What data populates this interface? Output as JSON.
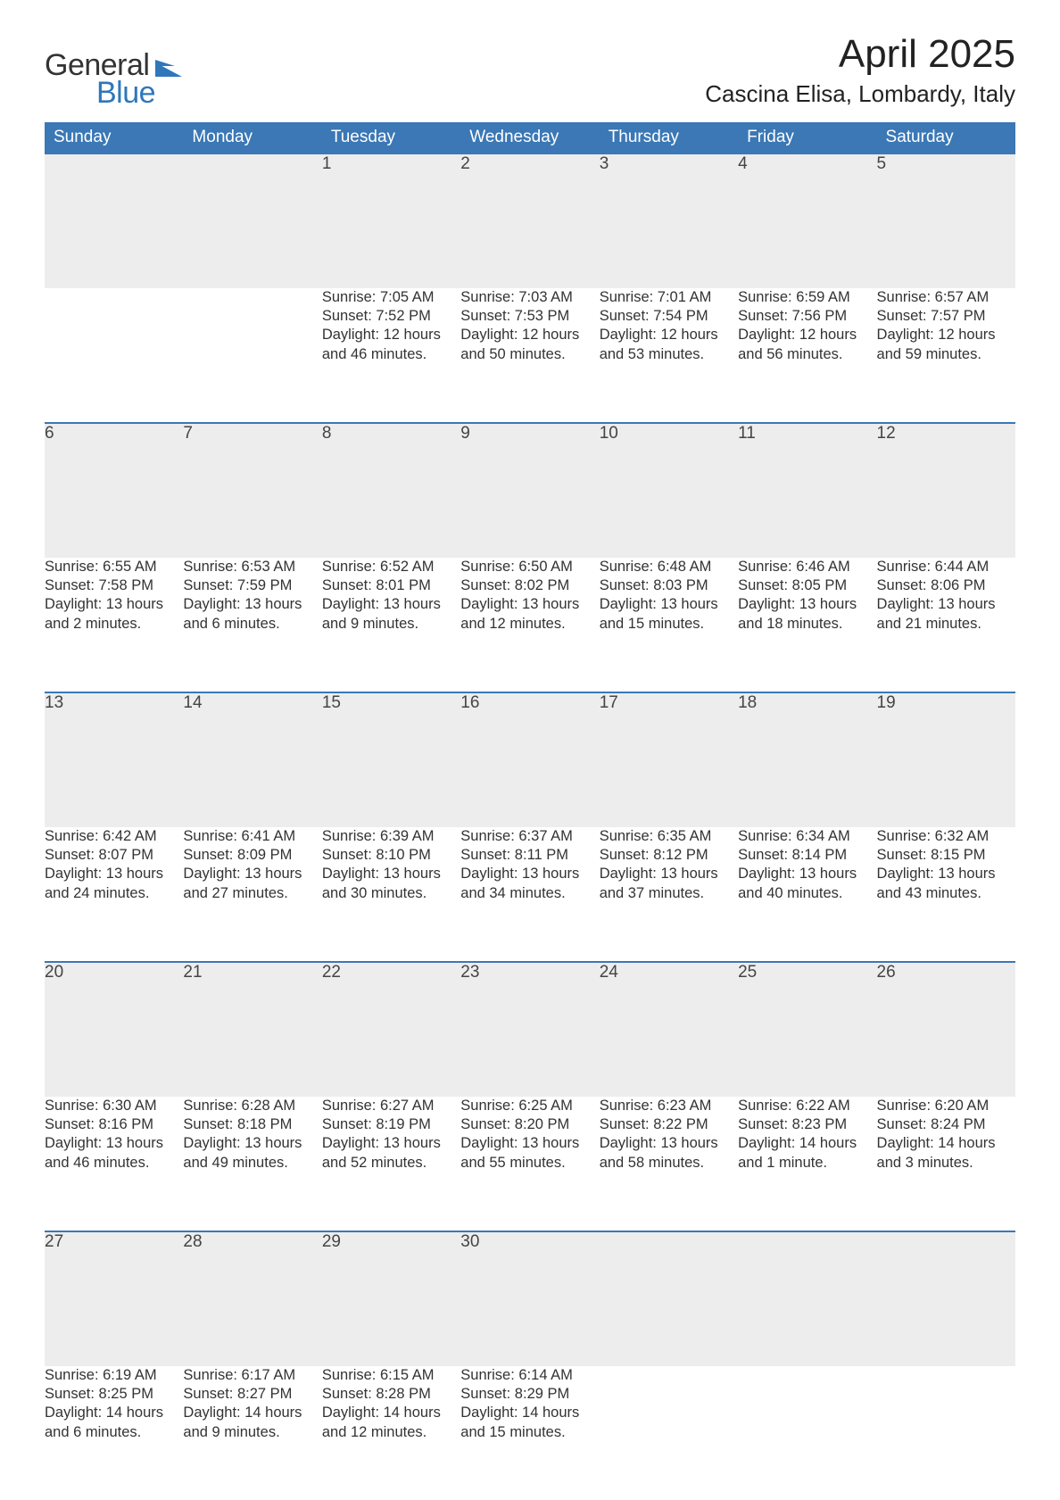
{
  "colors": {
    "accent": "#3b78b5",
    "row_header_bg": "#ededed",
    "background": "#ffffff",
    "text": "#333333",
    "logo_blue": "#2f77bb"
  },
  "logo": {
    "line1": "General",
    "line2": "Blue"
  },
  "title": "April 2025",
  "location": "Cascina Elisa, Lombardy, Italy",
  "weekdays": [
    "Sunday",
    "Monday",
    "Tuesday",
    "Wednesday",
    "Thursday",
    "Friday",
    "Saturday"
  ],
  "weeks": [
    [
      null,
      null,
      {
        "d": "1",
        "sr": "Sunrise: 7:05 AM",
        "ss": "Sunset: 7:52 PM",
        "dl1": "Daylight: 12 hours",
        "dl2": "and 46 minutes."
      },
      {
        "d": "2",
        "sr": "Sunrise: 7:03 AM",
        "ss": "Sunset: 7:53 PM",
        "dl1": "Daylight: 12 hours",
        "dl2": "and 50 minutes."
      },
      {
        "d": "3",
        "sr": "Sunrise: 7:01 AM",
        "ss": "Sunset: 7:54 PM",
        "dl1": "Daylight: 12 hours",
        "dl2": "and 53 minutes."
      },
      {
        "d": "4",
        "sr": "Sunrise: 6:59 AM",
        "ss": "Sunset: 7:56 PM",
        "dl1": "Daylight: 12 hours",
        "dl2": "and 56 minutes."
      },
      {
        "d": "5",
        "sr": "Sunrise: 6:57 AM",
        "ss": "Sunset: 7:57 PM",
        "dl1": "Daylight: 12 hours",
        "dl2": "and 59 minutes."
      }
    ],
    [
      {
        "d": "6",
        "sr": "Sunrise: 6:55 AM",
        "ss": "Sunset: 7:58 PM",
        "dl1": "Daylight: 13 hours",
        "dl2": "and 2 minutes."
      },
      {
        "d": "7",
        "sr": "Sunrise: 6:53 AM",
        "ss": "Sunset: 7:59 PM",
        "dl1": "Daylight: 13 hours",
        "dl2": "and 6 minutes."
      },
      {
        "d": "8",
        "sr": "Sunrise: 6:52 AM",
        "ss": "Sunset: 8:01 PM",
        "dl1": "Daylight: 13 hours",
        "dl2": "and 9 minutes."
      },
      {
        "d": "9",
        "sr": "Sunrise: 6:50 AM",
        "ss": "Sunset: 8:02 PM",
        "dl1": "Daylight: 13 hours",
        "dl2": "and 12 minutes."
      },
      {
        "d": "10",
        "sr": "Sunrise: 6:48 AM",
        "ss": "Sunset: 8:03 PM",
        "dl1": "Daylight: 13 hours",
        "dl2": "and 15 minutes."
      },
      {
        "d": "11",
        "sr": "Sunrise: 6:46 AM",
        "ss": "Sunset: 8:05 PM",
        "dl1": "Daylight: 13 hours",
        "dl2": "and 18 minutes."
      },
      {
        "d": "12",
        "sr": "Sunrise: 6:44 AM",
        "ss": "Sunset: 8:06 PM",
        "dl1": "Daylight: 13 hours",
        "dl2": "and 21 minutes."
      }
    ],
    [
      {
        "d": "13",
        "sr": "Sunrise: 6:42 AM",
        "ss": "Sunset: 8:07 PM",
        "dl1": "Daylight: 13 hours",
        "dl2": "and 24 minutes."
      },
      {
        "d": "14",
        "sr": "Sunrise: 6:41 AM",
        "ss": "Sunset: 8:09 PM",
        "dl1": "Daylight: 13 hours",
        "dl2": "and 27 minutes."
      },
      {
        "d": "15",
        "sr": "Sunrise: 6:39 AM",
        "ss": "Sunset: 8:10 PM",
        "dl1": "Daylight: 13 hours",
        "dl2": "and 30 minutes."
      },
      {
        "d": "16",
        "sr": "Sunrise: 6:37 AM",
        "ss": "Sunset: 8:11 PM",
        "dl1": "Daylight: 13 hours",
        "dl2": "and 34 minutes."
      },
      {
        "d": "17",
        "sr": "Sunrise: 6:35 AM",
        "ss": "Sunset: 8:12 PM",
        "dl1": "Daylight: 13 hours",
        "dl2": "and 37 minutes."
      },
      {
        "d": "18",
        "sr": "Sunrise: 6:34 AM",
        "ss": "Sunset: 8:14 PM",
        "dl1": "Daylight: 13 hours",
        "dl2": "and 40 minutes."
      },
      {
        "d": "19",
        "sr": "Sunrise: 6:32 AM",
        "ss": "Sunset: 8:15 PM",
        "dl1": "Daylight: 13 hours",
        "dl2": "and 43 minutes."
      }
    ],
    [
      {
        "d": "20",
        "sr": "Sunrise: 6:30 AM",
        "ss": "Sunset: 8:16 PM",
        "dl1": "Daylight: 13 hours",
        "dl2": "and 46 minutes."
      },
      {
        "d": "21",
        "sr": "Sunrise: 6:28 AM",
        "ss": "Sunset: 8:18 PM",
        "dl1": "Daylight: 13 hours",
        "dl2": "and 49 minutes."
      },
      {
        "d": "22",
        "sr": "Sunrise: 6:27 AM",
        "ss": "Sunset: 8:19 PM",
        "dl1": "Daylight: 13 hours",
        "dl2": "and 52 minutes."
      },
      {
        "d": "23",
        "sr": "Sunrise: 6:25 AM",
        "ss": "Sunset: 8:20 PM",
        "dl1": "Daylight: 13 hours",
        "dl2": "and 55 minutes."
      },
      {
        "d": "24",
        "sr": "Sunrise: 6:23 AM",
        "ss": "Sunset: 8:22 PM",
        "dl1": "Daylight: 13 hours",
        "dl2": "and 58 minutes."
      },
      {
        "d": "25",
        "sr": "Sunrise: 6:22 AM",
        "ss": "Sunset: 8:23 PM",
        "dl1": "Daylight: 14 hours",
        "dl2": "and 1 minute."
      },
      {
        "d": "26",
        "sr": "Sunrise: 6:20 AM",
        "ss": "Sunset: 8:24 PM",
        "dl1": "Daylight: 14 hours",
        "dl2": "and 3 minutes."
      }
    ],
    [
      {
        "d": "27",
        "sr": "Sunrise: 6:19 AM",
        "ss": "Sunset: 8:25 PM",
        "dl1": "Daylight: 14 hours",
        "dl2": "and 6 minutes."
      },
      {
        "d": "28",
        "sr": "Sunrise: 6:17 AM",
        "ss": "Sunset: 8:27 PM",
        "dl1": "Daylight: 14 hours",
        "dl2": "and 9 minutes."
      },
      {
        "d": "29",
        "sr": "Sunrise: 6:15 AM",
        "ss": "Sunset: 8:28 PM",
        "dl1": "Daylight: 14 hours",
        "dl2": "and 12 minutes."
      },
      {
        "d": "30",
        "sr": "Sunrise: 6:14 AM",
        "ss": "Sunset: 8:29 PM",
        "dl1": "Daylight: 14 hours",
        "dl2": "and 15 minutes."
      },
      null,
      null,
      null
    ]
  ]
}
